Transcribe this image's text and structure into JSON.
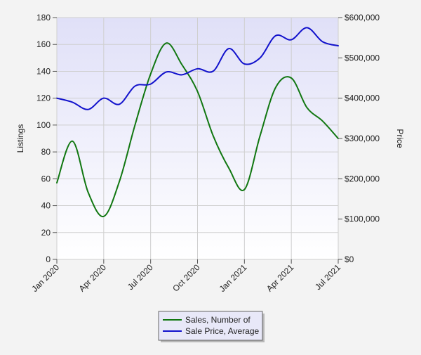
{
  "chart_data": {
    "type": "line",
    "title": "",
    "x_ticks": [
      "Jan 2020",
      "Apr 2020",
      "Jul 2020",
      "Oct 2020",
      "Jan 2021",
      "Apr 2021",
      "Jul 2021"
    ],
    "x": [
      "2020-01",
      "2020-02",
      "2020-03",
      "2020-04",
      "2020-05",
      "2020-06",
      "2020-07",
      "2020-08",
      "2020-09",
      "2020-10",
      "2020-11",
      "2020-12",
      "2021-01",
      "2021-02",
      "2021-03",
      "2021-04",
      "2021-05",
      "2021-06",
      "2021-07"
    ],
    "ylabel_left": "Listings",
    "ylabel_right": "Price",
    "ylim_left": [
      0,
      180
    ],
    "ylim_right": [
      0,
      600000
    ],
    "y_ticks_left": [
      "0",
      "20",
      "40",
      "60",
      "80",
      "100",
      "120",
      "140",
      "160",
      "180"
    ],
    "y_ticks_right": [
      "$0",
      "$100,000",
      "$200,000",
      "$300,000",
      "$400,000",
      "$500,000",
      "$600,000"
    ],
    "grid": true,
    "legend_position": "bottom-center",
    "series": [
      {
        "name": "Sales, Number of",
        "axis": "left",
        "color": "#117711",
        "values": [
          57,
          88,
          50,
          32,
          58,
          100,
          138,
          161,
          145,
          125,
          92,
          68,
          52,
          92,
          128,
          135,
          113,
          103,
          90
        ]
      },
      {
        "name": "Sale Price, Average",
        "axis": "right",
        "color": "#1111cc",
        "values": [
          400000,
          390000,
          372000,
          400000,
          385000,
          430000,
          435000,
          465000,
          458000,
          473000,
          467000,
          523000,
          485000,
          500000,
          555000,
          545000,
          575000,
          540000,
          530000
        ]
      }
    ]
  }
}
